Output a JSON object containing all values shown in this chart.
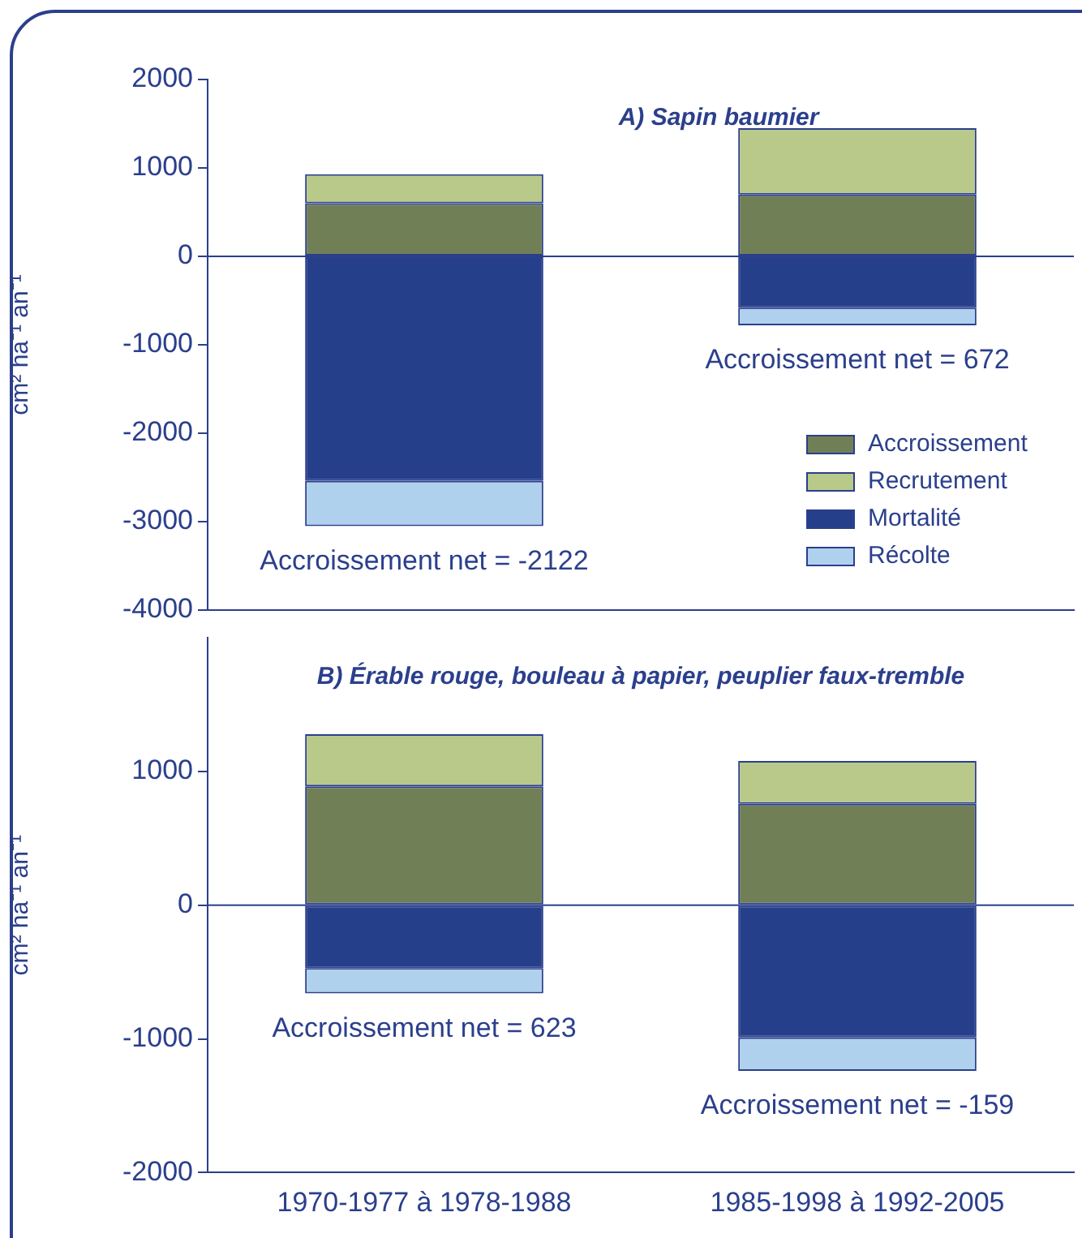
{
  "chart_data": [
    {
      "type": "bar",
      "title": "A) Sapin baumier",
      "ylabel": "cm² ha⁻¹ an⁻¹",
      "categories": [
        null,
        null
      ],
      "stacked": true,
      "legend": "bottom right",
      "tick_labels": "y",
      "series": [
        {
          "name": "Accroissement",
          "color": "#717f57",
          "values": [
            600,
            700
          ]
        },
        {
          "name": "Recrutement",
          "color": "#b8c98a",
          "values": [
            330,
            750
          ]
        },
        {
          "name": "Mortalité",
          "color": "#253f8b",
          "values": [
            -2540,
            -580
          ]
        },
        {
          "name": "Récolte",
          "color": "#b0d1ee",
          "values": [
            -510,
            -200
          ]
        }
      ],
      "ylim": [
        -4000,
        2000
      ],
      "yticks": [
        -4000,
        -3000,
        -2000,
        -1000,
        0,
        1000,
        2000
      ],
      "ref_lines": [
        {
          "axis": "y",
          "value": 0
        }
      ],
      "annotations": [
        "Accroissement net = -2122",
        "Accroissement net = 672"
      ]
    },
    {
      "type": "bar",
      "title": "B) Érable rouge, bouleau à papier, peuplier faux-tremble",
      "ylabel": "cm² ha⁻¹ an⁻¹",
      "categories": [
        "1970-1977 à 1978-1988",
        "1985-1998 à 1992-2005"
      ],
      "stacked": true,
      "series": [
        {
          "color": "#717f57",
          "values": [
            890,
            760
          ]
        },
        {
          "color": "#b8c98a",
          "values": [
            390,
            320
          ]
        },
        {
          "color": "#253f8b",
          "values": [
            -470,
            -990
          ]
        },
        {
          "color": "#b0d1ee",
          "values": [
            -190,
            -250
          ]
        }
      ],
      "ylim": [
        -2000,
        2000
      ],
      "yticks": [
        -2000,
        -1000,
        0,
        1000
      ],
      "ref_lines": [
        {
          "axis": "y",
          "value": 0
        }
      ],
      "annotations": [
        "Accroissement net = 623",
        "Accroissement net = -159"
      ]
    }
  ]
}
